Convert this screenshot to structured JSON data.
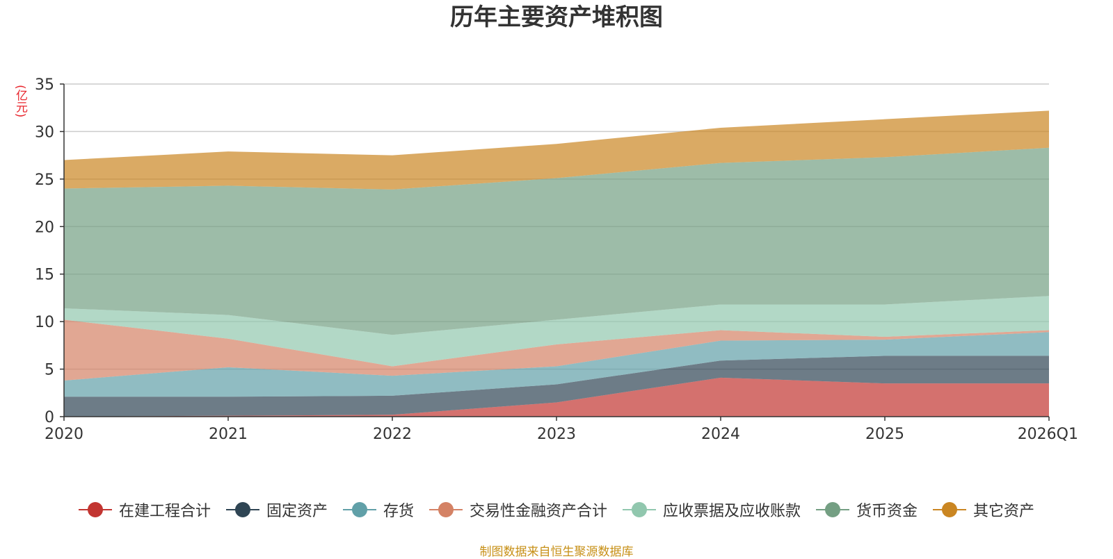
{
  "title": "历年主要资产堆积图",
  "unit": "(亿元)",
  "source": "制图数据来自恒生聚源数据库",
  "chart_data": {
    "type": "area",
    "stacked": true,
    "categories": [
      "2020",
      "2021",
      "2022",
      "2023",
      "2024",
      "2025",
      "2026Q1"
    ],
    "ylim": [
      0,
      35
    ],
    "yticks": [
      0,
      5,
      10,
      15,
      20,
      25,
      30,
      35
    ],
    "ylabel": "(亿元)",
    "grid": true,
    "legend_position": "bottom",
    "series": [
      {
        "name": "在建工程合计",
        "color": "#c23531",
        "values": [
          0.0,
          0.1,
          0.2,
          1.5,
          4.1,
          3.5,
          3.5
        ]
      },
      {
        "name": "固定资产",
        "color": "#2f4554",
        "values": [
          2.1,
          2.0,
          2.0,
          1.9,
          1.8,
          2.9,
          2.9
        ]
      },
      {
        "name": "存货",
        "color": "#61a0a8",
        "values": [
          1.7,
          3.1,
          2.1,
          1.9,
          2.1,
          1.7,
          2.5
        ]
      },
      {
        "name": "交易性金融资产合计",
        "color": "#d48265",
        "values": [
          6.4,
          3.0,
          1.0,
          2.3,
          1.1,
          0.3,
          0.2
        ]
      },
      {
        "name": "应收票据及应收账款",
        "color": "#91c7ae",
        "values": [
          1.2,
          2.5,
          3.3,
          2.6,
          2.7,
          3.4,
          3.6
        ]
      },
      {
        "name": "货币资金",
        "color": "#749f83",
        "values": [
          12.6,
          13.6,
          15.3,
          14.9,
          14.9,
          15.5,
          15.6
        ]
      },
      {
        "name": "其它资产",
        "color": "#ca8622",
        "values": [
          3.0,
          3.6,
          3.6,
          3.6,
          3.7,
          4.0,
          3.9
        ]
      }
    ]
  }
}
